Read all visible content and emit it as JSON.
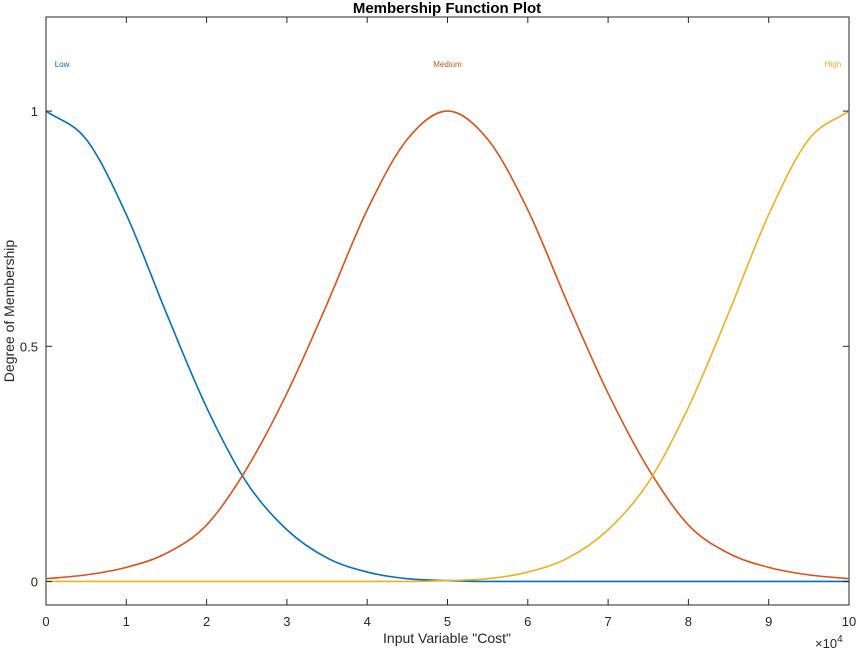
{
  "chart_data": {
    "type": "line",
    "title": "Membership Function Plot",
    "xlabel": "Input Variable \"Cost\"",
    "ylabel": "Degree of Membership",
    "xlim": [
      0,
      100000
    ],
    "ylim": [
      -0.05,
      1.2
    ],
    "x_ticks": [
      0,
      10000,
      20000,
      30000,
      40000,
      50000,
      60000,
      70000,
      80000,
      90000,
      100000
    ],
    "x_tick_labels": [
      "0",
      "1",
      "2",
      "3",
      "4",
      "5",
      "6",
      "7",
      "8",
      "9",
      "10"
    ],
    "x_multiplier": {
      "base": "×10",
      "exponent": "4"
    },
    "y_ticks": [
      0,
      0.5,
      1
    ],
    "y_tick_labels": [
      "0",
      "0.5",
      "1"
    ],
    "grid": false,
    "legend": "none",
    "x": [
      0,
      5000,
      10000,
      15000,
      20000,
      25000,
      30000,
      35000,
      40000,
      45000,
      50000,
      55000,
      60000,
      65000,
      70000,
      75000,
      80000,
      85000,
      90000,
      95000,
      100000
    ],
    "series": [
      {
        "name": "Low",
        "color": "#0072BD",
        "label_x": 2000,
        "values": [
          1.0,
          0.94,
          0.78,
          0.57,
          0.37,
          0.21,
          0.11,
          0.05,
          0.02,
          0.006,
          0.002,
          0.0,
          0.0,
          0.0,
          0.0,
          0.0,
          0.0,
          0.0,
          0.0,
          0.0,
          0.0
        ]
      },
      {
        "name": "Medium",
        "color": "#D95319",
        "label_x": 50000,
        "values": [
          0.006,
          0.014,
          0.03,
          0.06,
          0.12,
          0.24,
          0.4,
          0.59,
          0.79,
          0.94,
          1.0,
          0.94,
          0.79,
          0.59,
          0.4,
          0.24,
          0.12,
          0.06,
          0.03,
          0.014,
          0.006
        ]
      },
      {
        "name": "High",
        "color": "#EDB120",
        "label_x": 98000,
        "values": [
          0.0,
          0.0,
          0.0,
          0.0,
          0.0,
          0.0,
          0.0,
          0.0,
          0.0,
          0.0,
          0.002,
          0.006,
          0.02,
          0.05,
          0.11,
          0.21,
          0.37,
          0.57,
          0.78,
          0.94,
          1.0
        ]
      }
    ]
  }
}
